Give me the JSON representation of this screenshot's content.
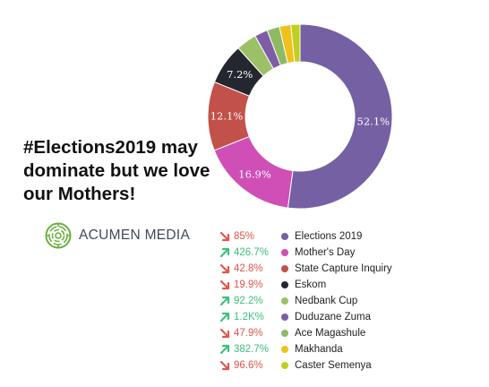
{
  "headline": "#Elections2019 may dominate but we love our Mothers!",
  "brand": {
    "name": "ACUMEN MEDIA",
    "logo_icon": "acumen-circular-maze-logo",
    "color": "#6dae3f"
  },
  "colors": {
    "up": "#3cc07e",
    "down": "#e0564c"
  },
  "chart_data": {
    "type": "pie",
    "variant": "donut",
    "categories": [
      "Elections 2019",
      "Mother's Day",
      "State Capture Inquiry",
      "Eskom",
      "Nedbank Cup",
      "Duduzane Zuma",
      "Ace Magashule",
      "Makhanda",
      "Caster Semenya"
    ],
    "values": [
      52.1,
      16.9,
      12.1,
      7.2,
      3.6,
      2.3,
      2.2,
      2.0,
      1.6
    ],
    "labels": [
      "52.1%",
      "16.9%",
      "12.1%",
      "7.2%",
      "",
      "",
      "",
      "",
      ""
    ],
    "colors": [
      "#7460a2",
      "#cf4fb7",
      "#c2514a",
      "#24272f",
      "#9cc066",
      "#7f5ca6",
      "#8fba64",
      "#eec11c",
      "#c2cf1e"
    ],
    "legend_placement": "bottom",
    "legend": [
      {
        "name": "Elections 2019",
        "change": "85%",
        "direction": "down"
      },
      {
        "name": "Mother's Day",
        "change": "426.7%",
        "direction": "up"
      },
      {
        "name": "State Capture Inquiry",
        "change": "42.8%",
        "direction": "down"
      },
      {
        "name": "Eskom",
        "change": "19.9%",
        "direction": "down"
      },
      {
        "name": "Nedbank Cup",
        "change": "92.2%",
        "direction": "up"
      },
      {
        "name": "Duduzane Zuma",
        "change": "1.2K%",
        "direction": "up"
      },
      {
        "name": "Ace Magashule",
        "change": "47.9%",
        "direction": "down"
      },
      {
        "name": "Makhanda",
        "change": "382.7%",
        "direction": "up"
      },
      {
        "name": "Caster Semenya",
        "change": "96.6%",
        "direction": "down"
      }
    ]
  }
}
